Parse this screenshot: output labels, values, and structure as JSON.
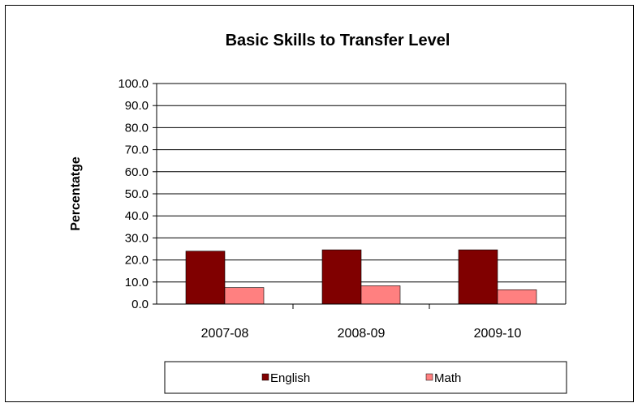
{
  "chart_data": {
    "type": "bar",
    "title": "Basic Skills to Transfer Level",
    "xlabel": "",
    "ylabel": "Percentatge",
    "categories": [
      "2007-08",
      "2008-09",
      "2009-10"
    ],
    "series": [
      {
        "name": "English",
        "values": [
          24.0,
          24.6,
          24.6
        ],
        "color": "#800000"
      },
      {
        "name": "Math",
        "values": [
          7.5,
          8.3,
          6.5
        ],
        "color": "#ff8080"
      }
    ],
    "ylim": [
      0,
      100
    ],
    "ytick_step": 10,
    "ytick_labels": [
      "0.0",
      "10.0",
      "20.0",
      "30.0",
      "40.0",
      "50.0",
      "60.0",
      "70.0",
      "80.0",
      "90.0",
      "100.0"
    ],
    "grid": true,
    "legend_position": "bottom"
  }
}
